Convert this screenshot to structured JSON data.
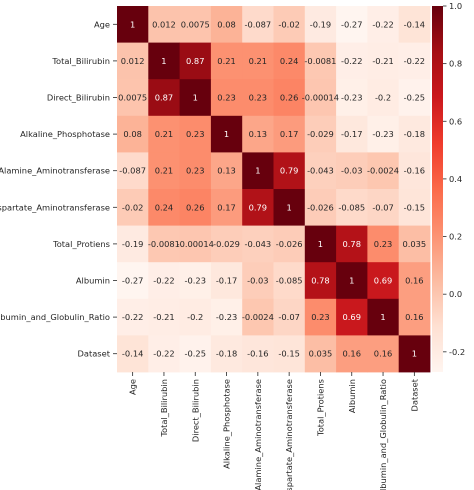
{
  "chart_data": {
    "type": "heatmap",
    "title": "",
    "xlabel": "",
    "ylabel": "",
    "labels": [
      "Age",
      "Total_Bilirubin",
      "Direct_Bilirubin",
      "Alkaline_Phosphotase",
      "Alamine_Aminotransferase",
      "Aspartate_Aminotransferase",
      "Total_Protiens",
      "Albumin",
      "Albumin_and_Globulin_Ratio",
      "Dataset"
    ],
    "values": [
      [
        1,
        0.012,
        0.0075,
        0.08,
        -0.087,
        -0.02,
        -0.19,
        -0.27,
        -0.22,
        -0.14
      ],
      [
        0.012,
        1,
        0.87,
        0.21,
        0.21,
        0.24,
        -0.0081,
        -0.22,
        -0.21,
        -0.22
      ],
      [
        0.0075,
        0.87,
        1,
        0.23,
        0.23,
        0.26,
        -0.00014,
        -0.23,
        -0.2,
        -0.25
      ],
      [
        0.08,
        0.21,
        0.23,
        1,
        0.13,
        0.17,
        -0.029,
        -0.17,
        -0.23,
        -0.18
      ],
      [
        -0.087,
        0.21,
        0.23,
        0.13,
        1,
        0.79,
        -0.043,
        -0.03,
        -0.0024,
        -0.16
      ],
      [
        -0.02,
        0.24,
        0.26,
        0.17,
        0.79,
        1,
        -0.026,
        -0.085,
        -0.07,
        -0.15
      ],
      [
        -0.19,
        -0.0081,
        -0.00014,
        -0.029,
        -0.043,
        -0.026,
        1,
        0.78,
        0.23,
        0.035
      ],
      [
        -0.27,
        -0.22,
        -0.23,
        -0.17,
        -0.03,
        -0.085,
        0.78,
        1,
        0.69,
        0.16
      ],
      [
        -0.22,
        -0.21,
        -0.2,
        -0.23,
        -0.0024,
        -0.07,
        0.23,
        0.69,
        1,
        0.16
      ],
      [
        -0.14,
        -0.22,
        -0.25,
        -0.18,
        -0.16,
        -0.15,
        0.035,
        0.16,
        0.16,
        1
      ]
    ],
    "annotations": [
      [
        "1",
        "0.012",
        "0.0075",
        "0.08",
        "-0.087",
        "-0.02",
        "-0.19",
        "-0.27",
        "-0.22",
        "-0.14"
      ],
      [
        "0.012",
        "1",
        "0.87",
        "0.21",
        "0.21",
        "0.24",
        "-0.0081",
        "-0.22",
        "-0.21",
        "-0.22"
      ],
      [
        "0.0075",
        "0.87",
        "1",
        "0.23",
        "0.23",
        "0.26",
        "-0.00014",
        "-0.23",
        "-0.2",
        "-0.25"
      ],
      [
        "0.08",
        "0.21",
        "0.23",
        "1",
        "0.13",
        "0.17",
        "-0.029",
        "-0.17",
        "-0.23",
        "-0.18"
      ],
      [
        "-0.087",
        "0.21",
        "0.23",
        "0.13",
        "1",
        "0.79",
        "-0.043",
        "-0.03",
        "-0.0024",
        "-0.16"
      ],
      [
        "-0.02",
        "0.24",
        "0.26",
        "0.17",
        "0.79",
        "1",
        "-0.026",
        "-0.085",
        "-0.07",
        "-0.15"
      ],
      [
        "-0.19",
        "-0.0081",
        "-0.00014",
        "-0.029",
        "-0.043",
        "-0.026",
        "1",
        "0.78",
        "0.23",
        "0.035"
      ],
      [
        "-0.27",
        "-0.22",
        "-0.23",
        "-0.17",
        "-0.03",
        "-0.085",
        "0.78",
        "1",
        "0.69",
        "0.16"
      ],
      [
        "-0.22",
        "-0.21",
        "-0.2",
        "-0.23",
        "-0.0024",
        "-0.07",
        "0.23",
        "0.69",
        "1",
        "0.16"
      ],
      [
        "-0.14",
        "-0.22",
        "-0.25",
        "-0.18",
        "-0.16",
        "-0.15",
        "0.035",
        "0.16",
        "0.16",
        "1"
      ]
    ],
    "colorbar": {
      "colormap": "Reds",
      "vmin": -0.27,
      "vmax": 1.0,
      "ticks": [
        1.0,
        0.8,
        0.6,
        0.4,
        0.2,
        0.0,
        -0.2
      ],
      "tick_labels": [
        "1.0",
        "0.8",
        "0.6",
        "0.4",
        "0.2",
        "0.0",
        "-0.2"
      ],
      "placement": "right"
    },
    "colors": {
      "reds_stops": [
        "#fff5f0",
        "#fee0d2",
        "#fcbba1",
        "#fc9272",
        "#fb6a4a",
        "#ef3b2c",
        "#cb181d",
        "#a50f15",
        "#67000d"
      ],
      "text_dark": "#262626",
      "text_light": "#ffffff"
    }
  }
}
